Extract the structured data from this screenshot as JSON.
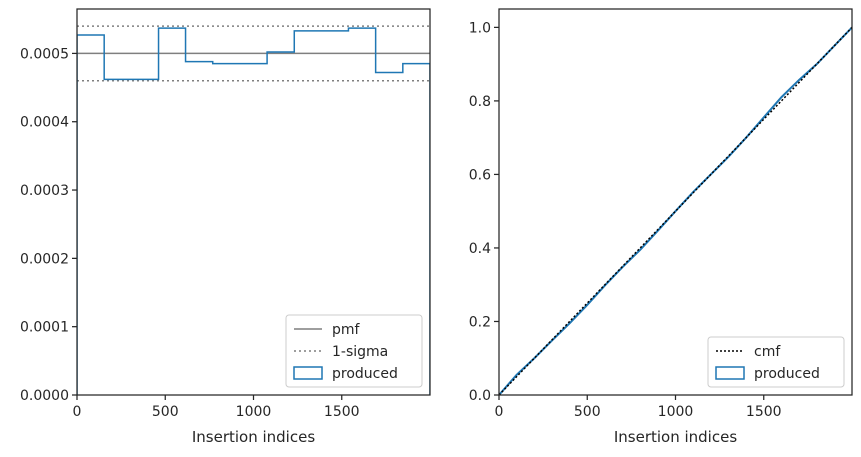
{
  "chart_data": [
    {
      "type": "step",
      "title": "",
      "xlabel": "Insertion indices",
      "ylabel": "",
      "xlim": [
        0,
        2000
      ],
      "ylim": [
        0,
        0.000565
      ],
      "xticks": [
        0,
        500,
        1000,
        1500
      ],
      "xtick_labels": [
        "0",
        "500",
        "1000",
        "1500"
      ],
      "yticks": [
        0,
        0.0001,
        0.0002,
        0.0003,
        0.0004,
        0.0005
      ],
      "ytick_labels": [
        "0.0000",
        "0.0001",
        "0.0002",
        "0.0003",
        "0.0004",
        "0.0005"
      ],
      "grid": false,
      "legend_position": "lower-right",
      "legend": [
        "pmf",
        "1-sigma",
        "produced"
      ],
      "pmf": {
        "name": "pmf",
        "value": 0.0005,
        "color": "#7f7f7f"
      },
      "sigma": {
        "name": "1-sigma",
        "values": [
          0.00046,
          0.00054
        ],
        "color": "#7f7f7f"
      },
      "series": [
        {
          "name": "produced",
          "color": "#1f77b4",
          "bin_edges": [
            0,
            154,
            462,
            615,
            769,
            1077,
            1231,
            1538,
            1692,
            1846,
            2000
          ],
          "values": [
            0.000527,
            0.000462,
            0.000537,
            0.000488,
            0.000485,
            0.000502,
            0.000533,
            0.000537,
            0.000472,
            0.000485
          ]
        }
      ]
    },
    {
      "type": "line",
      "title": "",
      "xlabel": "Insertion indices",
      "ylabel": "",
      "xlim": [
        0,
        2000
      ],
      "ylim": [
        0,
        1.05
      ],
      "xticks": [
        0,
        500,
        1000,
        1500
      ],
      "xtick_labels": [
        "0",
        "500",
        "1000",
        "1500"
      ],
      "yticks": [
        0,
        0.2,
        0.4,
        0.6,
        0.8,
        1.0
      ],
      "ytick_labels": [
        "0.0",
        "0.2",
        "0.4",
        "0.6",
        "0.8",
        "1.0"
      ],
      "grid": false,
      "legend_position": "lower-right",
      "legend": [
        "cmf",
        "produced"
      ],
      "series": [
        {
          "name": "cmf",
          "color": "#000000",
          "x": [
            0,
            2000
          ],
          "y": [
            0,
            1
          ]
        },
        {
          "name": "produced",
          "color": "#1f77b4",
          "x": [
            0,
            100,
            200,
            300,
            400,
            500,
            600,
            700,
            800,
            900,
            1000,
            1100,
            1200,
            1300,
            1400,
            1500,
            1600,
            1700,
            1800,
            1900,
            2000
          ],
          "y": [
            0,
            0.055,
            0.1,
            0.148,
            0.195,
            0.245,
            0.298,
            0.348,
            0.395,
            0.447,
            0.5,
            0.552,
            0.6,
            0.648,
            0.7,
            0.755,
            0.81,
            0.857,
            0.9,
            0.95,
            1.0
          ]
        }
      ]
    }
  ]
}
